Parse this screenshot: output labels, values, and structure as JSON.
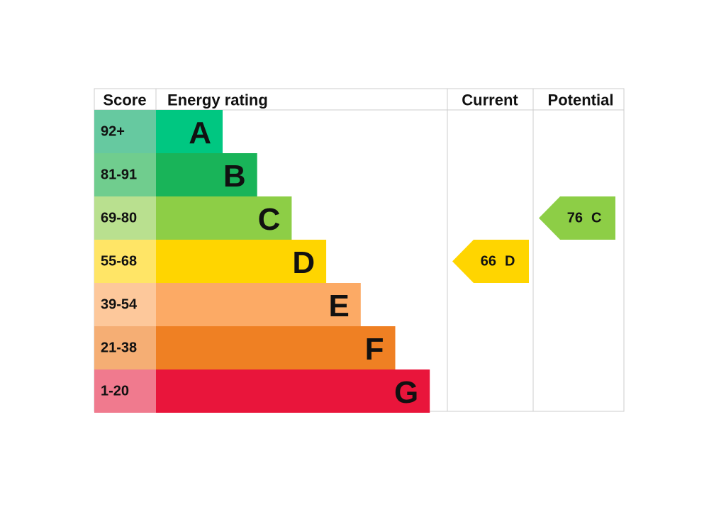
{
  "header": {
    "score": "Score",
    "rating": "Energy rating",
    "current": "Current",
    "potential": "Potential"
  },
  "bands": [
    {
      "score": "92+",
      "letter": "A",
      "color": "#00c781",
      "score_color": "#66c9a0"
    },
    {
      "score": "81-91",
      "letter": "B",
      "color": "#19b459",
      "score_color": "#70cd8e"
    },
    {
      "score": "69-80",
      "letter": "C",
      "color": "#8dce46",
      "score_color": "#b9e08f"
    },
    {
      "score": "55-68",
      "letter": "D",
      "color": "#ffd500",
      "score_color": "#ffe566"
    },
    {
      "score": "39-54",
      "letter": "E",
      "color": "#fcaa65",
      "score_color": "#fdc89b"
    },
    {
      "score": "21-38",
      "letter": "F",
      "color": "#ef8023",
      "score_color": "#f5ae74"
    },
    {
      "score": "1-20",
      "letter": "G",
      "color": "#e9153b",
      "score_color": "#f07a8e"
    }
  ],
  "current": {
    "value": 66,
    "rating": "D"
  },
  "potential": {
    "value": 76,
    "rating": "C"
  }
}
